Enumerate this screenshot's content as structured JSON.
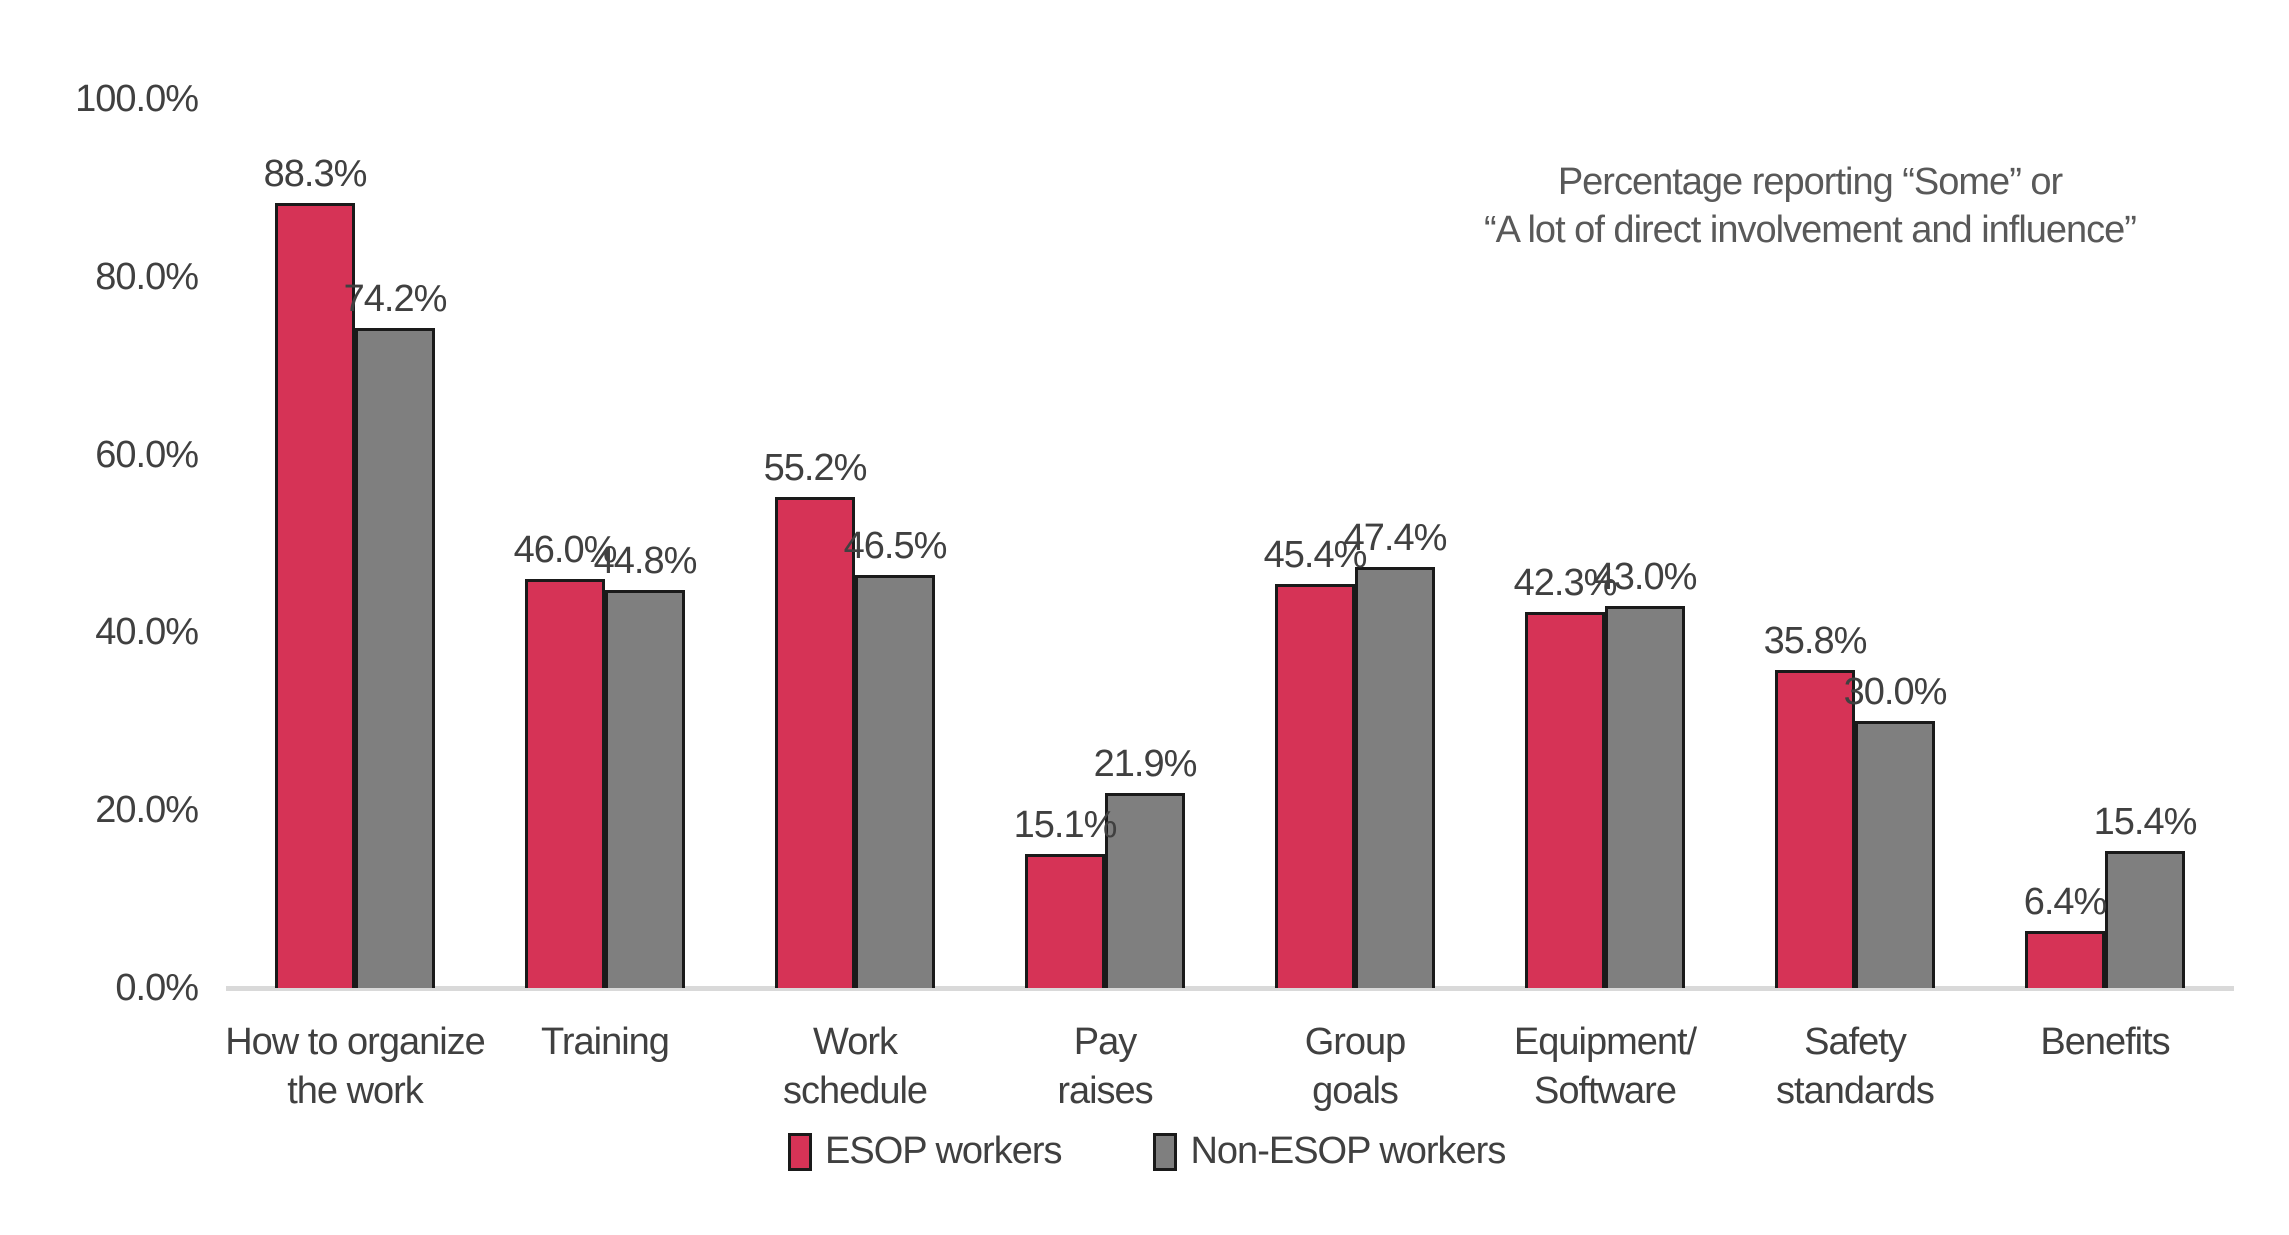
{
  "page": {
    "background": "#FFFFFF"
  },
  "annotation": {
    "line1": "Percentage reporting “Some” or",
    "line2": "“A lot of direct involvement and influence”"
  },
  "y_axis": {
    "tick_labels": [
      "100.0%",
      "80.0%",
      "60.0%",
      "40.0%",
      "20.0%",
      "0.0%"
    ],
    "tick_values": [
      100,
      80,
      60,
      40,
      20,
      0
    ]
  },
  "legend": {
    "items": [
      {
        "label": "ESOP workers",
        "color": "#D63356"
      },
      {
        "label": "Non-ESOP workers",
        "color": "#7F7F7F"
      }
    ]
  },
  "chart_data": {
    "type": "bar",
    "categories": [
      "How to organize the work",
      "Training",
      "Work schedule",
      "Pay raises",
      "Group goals",
      "Equipment/Software",
      "Safety standards",
      "Benefits"
    ],
    "category_label_lines": [
      [
        "How to organize",
        "the work"
      ],
      [
        "Training"
      ],
      [
        "Work",
        "schedule"
      ],
      [
        "Pay",
        "raises"
      ],
      [
        "Group",
        "goals"
      ],
      [
        "Equipment/",
        "Software"
      ],
      [
        "Safety",
        "standards"
      ],
      [
        "Benefits"
      ]
    ],
    "series": [
      {
        "name": "ESOP workers",
        "color": "#D63356",
        "values": [
          88.3,
          46.0,
          55.2,
          15.1,
          45.4,
          42.3,
          35.8,
          6.4
        ],
        "labels": [
          "88.3%",
          "46.0%",
          "55.2%",
          "15.1%",
          "45.4%",
          "42.3%",
          "35.8%",
          "6.4%"
        ]
      },
      {
        "name": "Non-ESOP workers",
        "color": "#7F7F7F",
        "values": [
          74.2,
          44.8,
          46.5,
          21.9,
          47.4,
          43.0,
          30.0,
          15.4
        ],
        "labels": [
          "74.2%",
          "44.8%",
          "46.5%",
          "21.9%",
          "47.4%",
          "43.0%",
          "30.0%",
          "15.4%"
        ]
      }
    ],
    "title": "",
    "xlabel": "",
    "ylabel": "",
    "ylim": [
      0,
      100
    ],
    "grid": false,
    "legend_position": "bottom",
    "annotation": "Percentage reporting “Some” or “A lot of direct involvement and influence”",
    "bar_outline_color": "#1A1A1A",
    "axis_line_color": "#D9D9D9",
    "text_color": "#404040"
  }
}
